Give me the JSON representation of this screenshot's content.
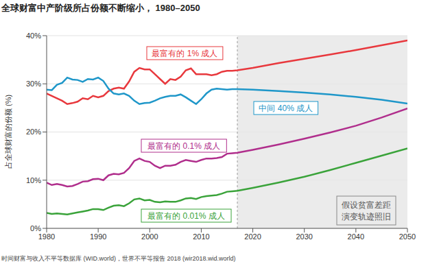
{
  "chart_data": {
    "type": "line",
    "title": "全球财富中产阶级所占份额不断缩小， 1980–2050",
    "y_label": "占全球财富的份额 (%)",
    "source": "时间财富与收入不平等数据库 (WID.world)，世界不平等报告 2018 (wir2018.wid.world)",
    "x": [
      1980,
      1981,
      1982,
      1983,
      1984,
      1985,
      1986,
      1987,
      1988,
      1989,
      1990,
      1991,
      1992,
      1993,
      1994,
      1995,
      1996,
      1997,
      1998,
      1999,
      2000,
      2001,
      2002,
      2003,
      2004,
      2005,
      2006,
      2007,
      2008,
      2009,
      2010,
      2011,
      2012,
      2013,
      2014,
      2015,
      2016,
      2017,
      2020,
      2025,
      2030,
      2035,
      2040,
      2045,
      2050
    ],
    "xlim": [
      1980,
      2050
    ],
    "xticks": [
      1980,
      1990,
      2000,
      2010,
      2020,
      2030,
      2040,
      2050
    ],
    "ylim": [
      0,
      40
    ],
    "yticks": [
      {
        "value": 0,
        "label": "0%"
      },
      {
        "value": 10,
        "label": "10%"
      },
      {
        "value": 20,
        "label": "20%"
      },
      {
        "value": 30,
        "label": "30%"
      },
      {
        "value": 40,
        "label": "40%"
      }
    ],
    "grid": true,
    "series": [
      {
        "name": "最富有的 1% 成人",
        "color": "#e8383d",
        "values": [
          28,
          27.5,
          27,
          26.5,
          25.8,
          26,
          26.3,
          27,
          26.8,
          27.5,
          27.2,
          27.5,
          28.5,
          29,
          29.2,
          29,
          30.5,
          32.5,
          33.3,
          33,
          33,
          32,
          31,
          30,
          31,
          30.8,
          31.5,
          32.8,
          33.2,
          32,
          32,
          32,
          31.8,
          32,
          32.5,
          32.7,
          32.7,
          32.8,
          33.3,
          34.3,
          35.2,
          36.1,
          37,
          38,
          39
        ]
      },
      {
        "name": "中间 40% 成人",
        "color": "#1f97c9",
        "values": [
          28.8,
          28.7,
          29.8,
          30.2,
          31.3,
          30.9,
          30.8,
          30.4,
          31,
          30.9,
          31.3,
          30.6,
          29,
          28,
          27.8,
          28,
          27.5,
          26.5,
          25.8,
          26,
          26.1,
          26.5,
          27,
          27.3,
          27.5,
          27.5,
          27.8,
          27.2,
          26.5,
          25.8,
          26.8,
          28,
          28.8,
          29,
          28.9,
          28.8,
          28.9,
          28.9,
          28.8,
          28.5,
          28.2,
          27.8,
          27.3,
          26.7,
          25.9
        ]
      },
      {
        "name": "最富有的 0.1% 成人",
        "color": "#b02e8c",
        "values": [
          9.5,
          9,
          9.2,
          9,
          8.7,
          8.8,
          9.2,
          9.7,
          9.8,
          10.2,
          10.3,
          10,
          11,
          11.3,
          11.2,
          11.5,
          12.5,
          14,
          14.5,
          14,
          13.8,
          13,
          12.5,
          13,
          13,
          13.2,
          13.8,
          14.2,
          14,
          13.8,
          14.2,
          14.5,
          14.5,
          14.6,
          14.8,
          15.5,
          15.6,
          15.7,
          16.3,
          17.4,
          18.6,
          19.9,
          21.3,
          23,
          24.9
        ]
      },
      {
        "name": "最富有的 0.01% 成人",
        "color": "#3aa33a",
        "values": [
          3.2,
          3,
          3.1,
          3,
          2.9,
          3.1,
          3.3,
          3.5,
          3.7,
          4,
          4,
          3.8,
          4.3,
          4.7,
          4.8,
          4.6,
          5.2,
          6,
          6.2,
          5.8,
          5.9,
          5.5,
          5.4,
          5.6,
          5.5,
          5.5,
          5.8,
          6.2,
          6.3,
          6.1,
          6.5,
          6.7,
          6.8,
          6.9,
          7.2,
          7.6,
          7.7,
          7.8,
          8.4,
          9.5,
          10.7,
          12.1,
          13.6,
          15.1,
          16.6
        ]
      }
    ],
    "shaded_region": {
      "xlim": [
        2017,
        2050
      ],
      "label_lines": [
        "假设贫富差距",
        "演变轨迹照旧"
      ]
    }
  }
}
